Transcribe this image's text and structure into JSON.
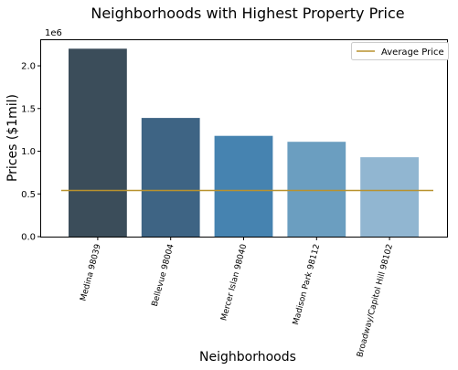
{
  "chart_data": {
    "type": "bar",
    "title": "Neighborhoods with Highest Property Price",
    "xlabel": "Neighborhoods",
    "ylabel": "Prices ($1mil)",
    "y_offset_label": "1e6",
    "ylim": [
      0,
      2300000
    ],
    "yticks": [
      0,
      500000,
      1000000,
      1500000,
      2000000
    ],
    "ytick_labels": [
      "0.0",
      "0.5",
      "1.0",
      "1.5",
      "2.0"
    ],
    "categories": [
      "Medina 98039",
      "Bellevue 98004",
      "Mercer Islan 98040",
      "Madison Park 98112",
      "Broadway/Capitol Hill 98102"
    ],
    "values": [
      2200000,
      1390000,
      1180000,
      1110000,
      930000
    ],
    "bar_colors": [
      "#3b4d5a",
      "#3e6484",
      "#4683b0",
      "#6b9ec0",
      "#91b6d1"
    ],
    "reference_line": {
      "name": "Average Price",
      "value": 540000,
      "color": "#b8922e"
    },
    "legend": {
      "placement": "top-right",
      "entries": [
        "Average Price"
      ]
    },
    "grid": false
  }
}
